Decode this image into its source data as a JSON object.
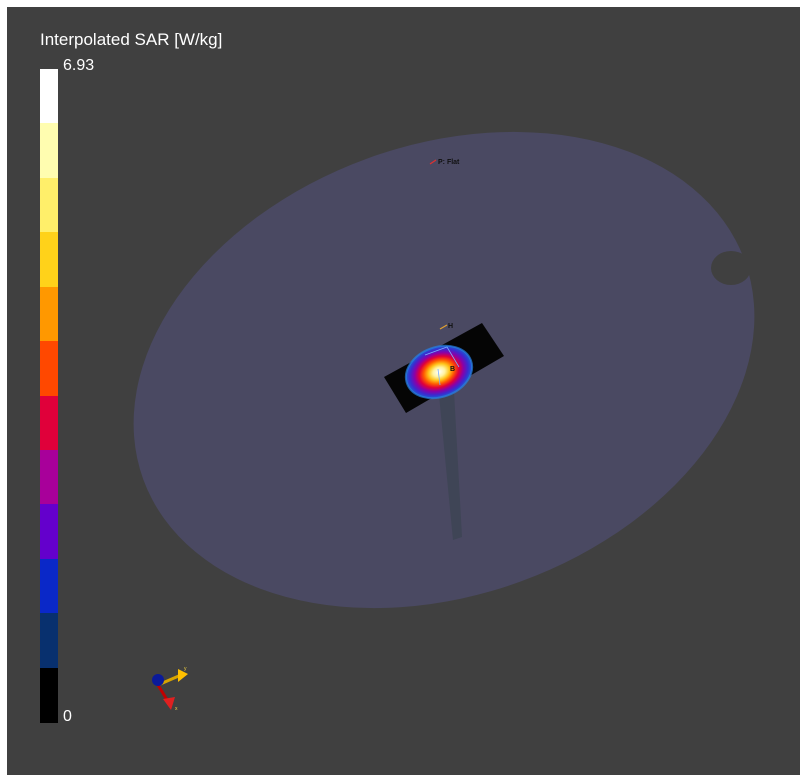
{
  "legend": {
    "title": "Interpolated SAR [W/kg]",
    "max_label": "6.93",
    "min_label": "0",
    "colors": [
      "#ffffff",
      "#fffdb0",
      "#ffef6a",
      "#ffd21a",
      "#ff9800",
      "#ff4800",
      "#e0003a",
      "#a8009a",
      "#6400cc",
      "#0a28c8",
      "#08306e",
      "#000000"
    ]
  },
  "scene": {
    "phantom_label": "P: Flat",
    "device_label": "H",
    "probe_label": "B",
    "phantom_color": "#4a4962",
    "axes_icon": {
      "y_label": "y",
      "x_label": "x"
    }
  }
}
